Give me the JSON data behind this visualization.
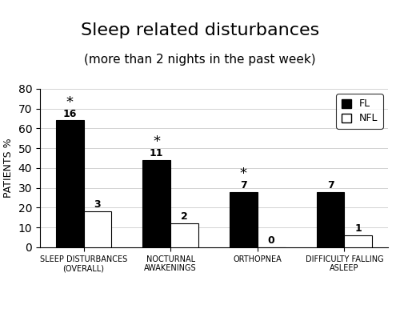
{
  "title": "Sleep related disturbances",
  "subtitle": "(more than 2 nights in the past week)",
  "ylabel": "PATIENTS %",
  "ylim": [
    0,
    80
  ],
  "yticks": [
    0,
    10,
    20,
    30,
    40,
    50,
    60,
    70,
    80
  ],
  "categories": [
    "SLEEP DISTURBANCES\n(OVERALL)",
    "NOCTURNAL\nAWAKENINGS",
    "ORTHOPNEA",
    "DIFFICULTY FALLING\nASLEEP"
  ],
  "fl_values": [
    64,
    44,
    28,
    28
  ],
  "nfl_values": [
    18,
    12,
    0,
    6
  ],
  "fl_labels": [
    "16",
    "11",
    "7",
    "7"
  ],
  "nfl_labels": [
    "3",
    "2",
    "0",
    "1"
  ],
  "significant": [
    true,
    true,
    true,
    false
  ],
  "fl_color": "#000000",
  "nfl_color": "#ffffff",
  "bar_width": 0.32,
  "title_fontsize": 16,
  "subtitle_fontsize": 11,
  "ylabel_fontsize": 9,
  "tick_fontsize": 7,
  "label_fontsize": 9,
  "asterisk_fontsize": 13,
  "legend_labels": [
    "FL",
    "NFL"
  ],
  "background_color": "#ffffff"
}
